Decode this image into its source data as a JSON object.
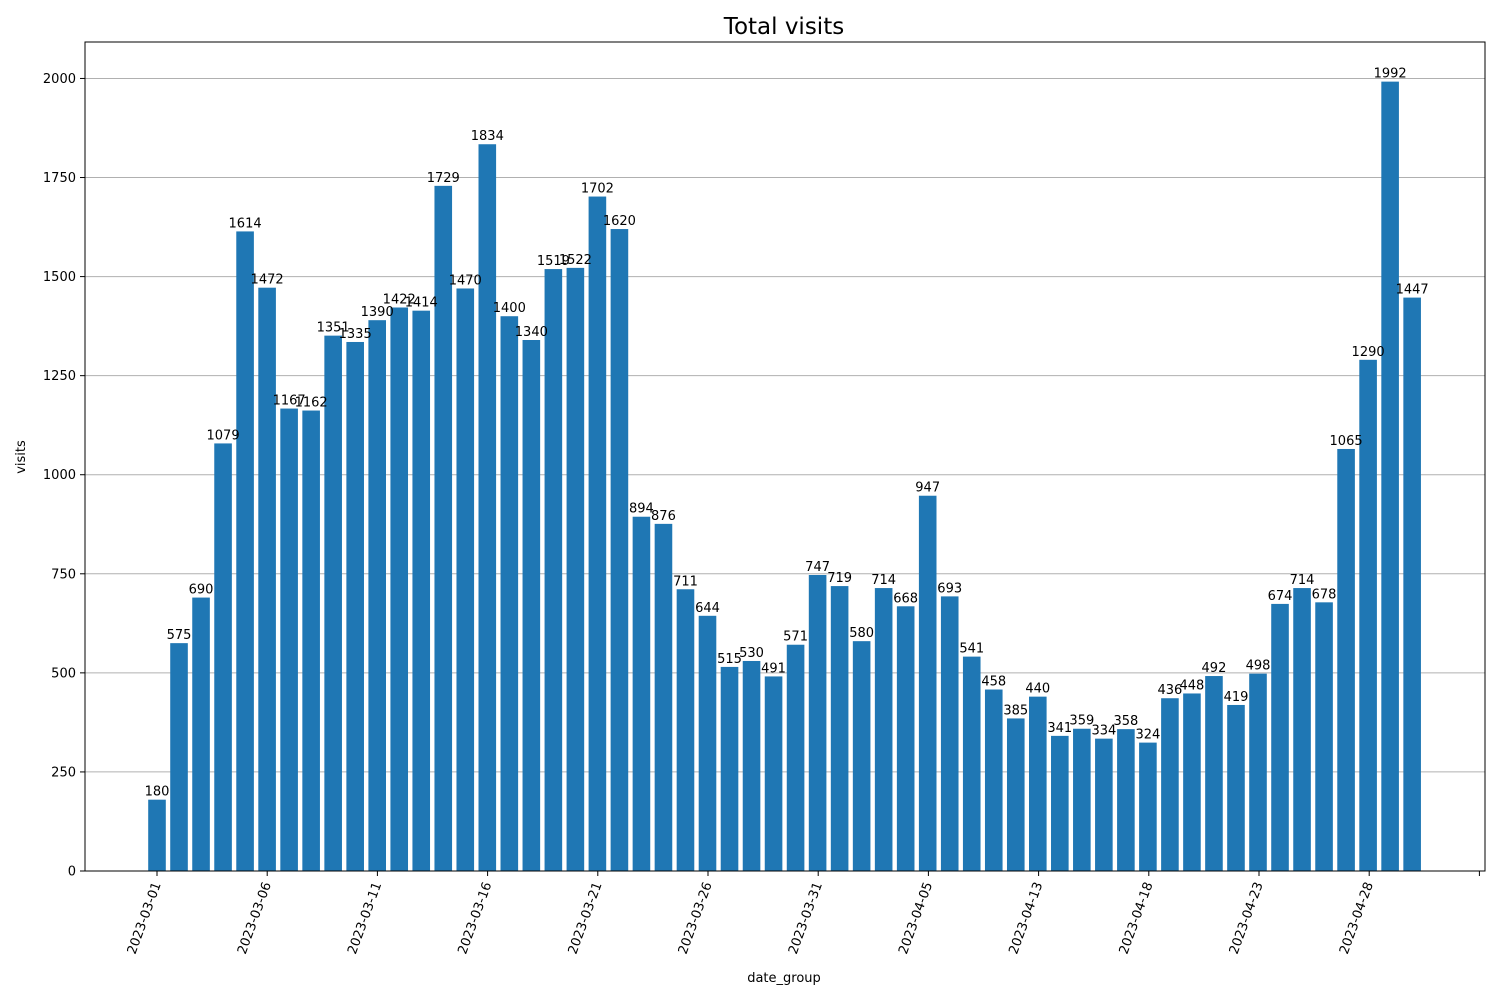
{
  "chart_data": {
    "type": "bar",
    "title": "Total visits",
    "xlabel": "date_group",
    "ylabel": "visits",
    "ylim": [
      0,
      2092
    ],
    "y_ticks": [
      0,
      250,
      500,
      750,
      1000,
      1250,
      1500,
      1750,
      2000
    ],
    "grid": "horizontal",
    "bar_color": "#1f77b4",
    "categories": [
      "2023-03-01",
      "2023-03-02",
      "2023-03-03",
      "2023-03-04",
      "2023-03-05",
      "2023-03-06",
      "2023-03-07",
      "2023-03-08",
      "2023-03-09",
      "2023-03-10",
      "2023-03-11",
      "2023-03-12",
      "2023-03-13",
      "2023-03-14",
      "2023-03-15",
      "2023-03-16",
      "2023-03-17",
      "2023-03-18",
      "2023-03-19",
      "2023-03-20",
      "2023-03-21",
      "2023-03-22",
      "2023-03-23",
      "2023-03-24",
      "2023-03-25",
      "2023-03-26",
      "2023-03-27",
      "2023-03-28",
      "2023-03-29",
      "2023-03-30",
      "2023-03-31",
      "2023-04-01",
      "2023-04-02",
      "2023-04-03",
      "2023-04-04",
      "2023-04-05",
      "2023-04-06",
      "2023-04-07",
      "2023-04-08",
      "2023-04-13",
      "2023-04-14",
      "2023-04-15",
      "2023-04-16",
      "2023-04-17",
      "2023-04-18",
      "2023-04-19",
      "2023-04-20",
      "2023-04-21",
      "2023-04-22",
      "2023-04-23",
      "2023-04-24",
      "2023-04-25",
      "2023-04-26",
      "2023-04-27",
      "2023-04-28",
      "2023-04-29",
      "2023-04-30",
      "2023-05-01"
    ],
    "values": [
      180,
      575,
      690,
      1079,
      1614,
      1472,
      1167,
      1162,
      1351,
      1335,
      1390,
      1422,
      1414,
      1729,
      1470,
      1834,
      1400,
      1340,
      1519,
      1522,
      1702,
      1620,
      894,
      876,
      711,
      644,
      515,
      530,
      491,
      571,
      747,
      719,
      580,
      714,
      668,
      947,
      693,
      541,
      458,
      385,
      440,
      341,
      359,
      334,
      358,
      324,
      436,
      448,
      492,
      419,
      498,
      674,
      714,
      678,
      1065,
      1290,
      1992,
      1447
    ],
    "x_tick_labels": [
      "2023-03-01",
      "2023-03-06",
      "2023-03-11",
      "2023-03-16",
      "2023-03-21",
      "2023-03-26",
      "2023-03-31",
      "2023-04-05",
      "2023-04-13",
      "2023-04-18",
      "2023-04-23",
      "2023-04-28"
    ]
  }
}
